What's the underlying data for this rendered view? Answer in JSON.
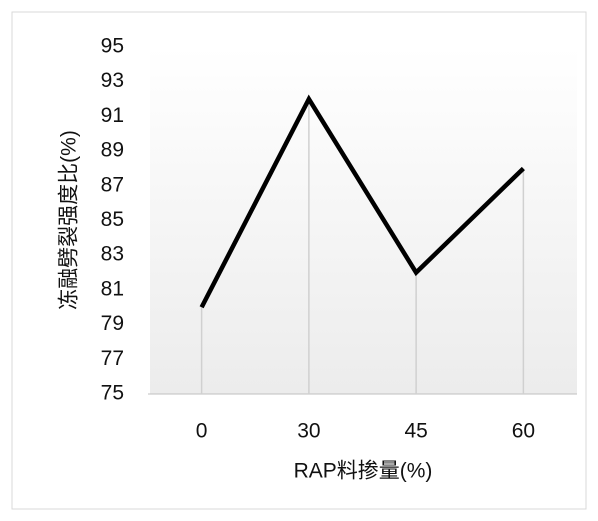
{
  "chart_data": {
    "type": "line",
    "xlabel": "RAP料掺量(%)",
    "ylabel": "冻融劈裂强度比(%)",
    "categories": [
      "0",
      "30",
      "45",
      "60"
    ],
    "values": [
      80,
      92,
      82,
      88
    ],
    "color": "#000000",
    "ylim": [
      75,
      95
    ],
    "yticks": [
      75,
      77,
      79,
      81,
      83,
      85,
      87,
      89,
      91,
      93,
      95
    ]
  }
}
